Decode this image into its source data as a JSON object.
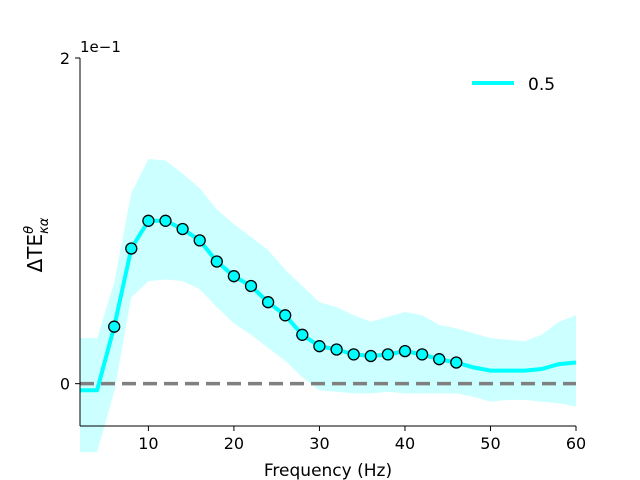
{
  "chart_data": {
    "type": "line",
    "xlabel": "Frequency (Hz)",
    "ylabel": "ΔTE",
    "ylabel_super": "θ",
    "ylabel_sub": "κα",
    "offset_text": "1e−1",
    "xlim": [
      2,
      60
    ],
    "ylim": [
      -0.26,
      2.0
    ],
    "x_ticks": [
      10,
      20,
      30,
      40,
      50,
      60
    ],
    "x_tick_labels": [
      "10",
      "20",
      "30",
      "40",
      "50",
      "60"
    ],
    "y_ticks": [
      0,
      2
    ],
    "y_tick_labels": [
      "0",
      "2"
    ],
    "legend_position": "top-right",
    "grid": false,
    "colors": {
      "series": "#00ffff",
      "band": "#ccffff",
      "zero_line": "#808080",
      "marker_edge": "#000000"
    },
    "series": [
      {
        "name": "0.5",
        "x": [
          2,
          4,
          6,
          8,
          10,
          12,
          14,
          16,
          18,
          20,
          22,
          24,
          26,
          28,
          30,
          32,
          34,
          36,
          38,
          40,
          42,
          44,
          46,
          48,
          50,
          52,
          54,
          56,
          58,
          60
        ],
        "y": [
          -0.04,
          -0.04,
          0.35,
          0.83,
          1.0,
          1.0,
          0.95,
          0.88,
          0.75,
          0.66,
          0.6,
          0.5,
          0.42,
          0.3,
          0.23,
          0.21,
          0.18,
          0.17,
          0.18,
          0.2,
          0.18,
          0.15,
          0.13,
          0.1,
          0.08,
          0.08,
          0.08,
          0.09,
          0.12,
          0.13
        ],
        "lower": [
          -0.42,
          -0.42,
          -0.05,
          0.53,
          0.63,
          0.64,
          0.63,
          0.58,
          0.47,
          0.37,
          0.3,
          0.22,
          0.14,
          0.04,
          -0.04,
          -0.05,
          -0.06,
          -0.06,
          -0.05,
          -0.06,
          -0.06,
          -0.06,
          -0.06,
          -0.08,
          -0.11,
          -0.1,
          -0.1,
          -0.11,
          -0.12,
          -0.14
        ],
        "upper": [
          0.28,
          0.28,
          0.62,
          1.17,
          1.38,
          1.37,
          1.29,
          1.2,
          1.07,
          0.98,
          0.9,
          0.82,
          0.7,
          0.6,
          0.5,
          0.47,
          0.42,
          0.38,
          0.41,
          0.44,
          0.42,
          0.36,
          0.34,
          0.31,
          0.28,
          0.27,
          0.26,
          0.3,
          0.38,
          0.42
        ],
        "marker_x": [
          6,
          8,
          10,
          12,
          14,
          16,
          18,
          20,
          22,
          24,
          26,
          28,
          30,
          32,
          34,
          36,
          38,
          40,
          42,
          44,
          46
        ]
      }
    ]
  }
}
